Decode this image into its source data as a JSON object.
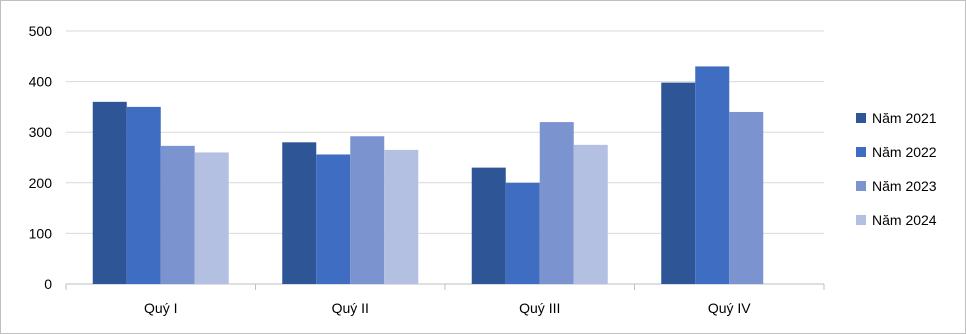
{
  "chart_data": {
    "type": "bar",
    "categories": [
      "Quý I",
      "Quý II",
      "Quý III",
      "Quý IV"
    ],
    "series": [
      {
        "name": "Năm 2021",
        "color": "#2e5596",
        "values": [
          360,
          280,
          230,
          398
        ]
      },
      {
        "name": "Năm 2022",
        "color": "#3f6dc1",
        "values": [
          350,
          256,
          200,
          430
        ]
      },
      {
        "name": "Năm 2023",
        "color": "#7b94d0",
        "values": [
          273,
          292,
          320,
          340
        ]
      },
      {
        "name": "Năm 2024",
        "color": "#b3c0e2",
        "values": [
          260,
          265,
          275,
          0
        ]
      }
    ],
    "y_ticks": [
      0,
      100,
      200,
      300,
      400,
      500
    ],
    "ylim": [
      0,
      500
    ],
    "grid": true,
    "legend_position": "right",
    "title": "",
    "xlabel": "",
    "ylabel": ""
  }
}
